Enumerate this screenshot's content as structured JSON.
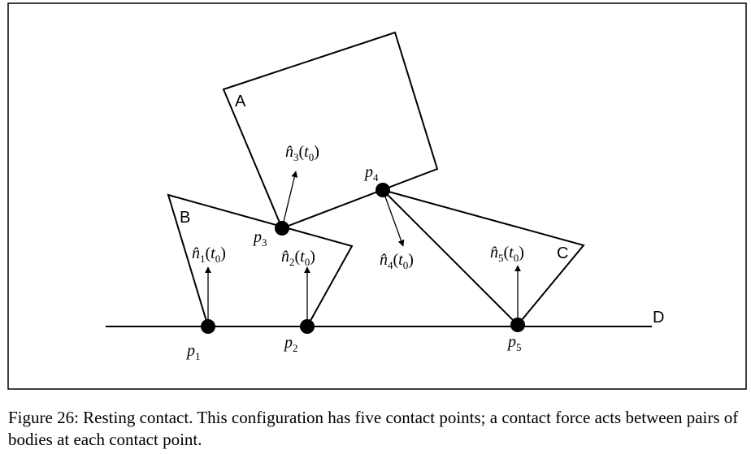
{
  "figure": {
    "bodies": {
      "a": "A",
      "b": "B",
      "c": "C",
      "d": "D"
    },
    "points": [
      {
        "id": "p1",
        "base": "p",
        "sub": "1"
      },
      {
        "id": "p2",
        "base": "p",
        "sub": "2"
      },
      {
        "id": "p3",
        "base": "p",
        "sub": "3"
      },
      {
        "id": "p4",
        "base": "p",
        "sub": "4"
      },
      {
        "id": "p5",
        "base": "p",
        "sub": "5"
      }
    ],
    "normals": [
      {
        "id": "n1",
        "base": "n̂",
        "sub": "1",
        "arg": "t",
        "arg_sub": "0"
      },
      {
        "id": "n2",
        "base": "n̂",
        "sub": "2",
        "arg": "t",
        "arg_sub": "0"
      },
      {
        "id": "n3",
        "base": "n̂",
        "sub": "3",
        "arg": "t",
        "arg_sub": "0"
      },
      {
        "id": "n4",
        "base": "n̂",
        "sub": "4",
        "arg": "t",
        "arg_sub": "0"
      },
      {
        "id": "n5",
        "base": "n̂",
        "sub": "5",
        "arg": "t",
        "arg_sub": "0"
      }
    ]
  },
  "caption": "Figure 26: Resting contact. This configuration has five contact points; a contact force acts between pairs of bodies at each contact point."
}
